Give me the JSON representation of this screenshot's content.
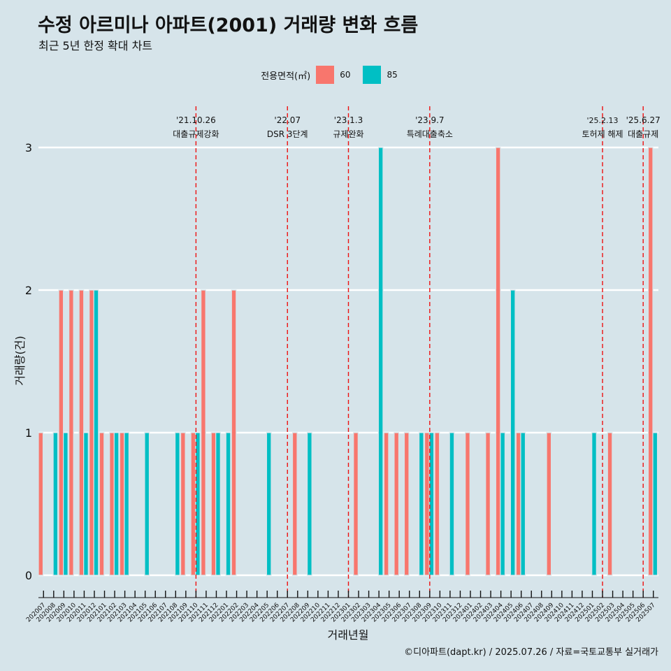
{
  "title": "수정 아르미나 아파트(2001) 거래량 변화 흐름",
  "subtitle": "최근 5년 한정 확대 차트",
  "caption": "©디아파트(dapt.kr) / 2025.07.26 / 자료=국토교통부 실거래가",
  "legend": {
    "title": "전용면적(㎡)",
    "items": [
      {
        "label": "60",
        "color": "#f8766d"
      },
      {
        "label": "85",
        "color": "#00bfc4"
      }
    ]
  },
  "chart_data": {
    "type": "bar",
    "xlabel": "거래년월",
    "ylabel": "거래량(건)",
    "ylim": [
      0,
      3
    ],
    "yticks": [
      0,
      1,
      2,
      3
    ],
    "categories": [
      "202007",
      "202008",
      "202009",
      "202010",
      "202011",
      "202012",
      "202101",
      "202102",
      "202103",
      "202104",
      "202105",
      "202106",
      "202107",
      "202108",
      "202109",
      "202110",
      "202111",
      "202112",
      "202201",
      "202202",
      "202203",
      "202204",
      "202205",
      "202206",
      "202207",
      "202208",
      "202209",
      "202210",
      "202211",
      "202212",
      "202301",
      "202302",
      "202303",
      "202304",
      "202305",
      "202306",
      "202307",
      "202308",
      "202309",
      "202310",
      "202311",
      "202312",
      "202401",
      "202402",
      "202403",
      "202404",
      "202405",
      "202406",
      "202407",
      "202408",
      "202409",
      "202410",
      "202411",
      "202412",
      "202501",
      "202502",
      "202503",
      "202504",
      "202505",
      "202506",
      "202507"
    ],
    "series": [
      {
        "name": "60",
        "color": "#f8766d",
        "values": [
          1,
          0,
          2,
          2,
          2,
          2,
          1,
          1,
          1,
          0,
          0,
          0,
          0,
          0,
          1,
          1,
          2,
          1,
          0,
          2,
          0,
          0,
          0,
          0,
          0,
          1,
          0,
          0,
          0,
          0,
          0,
          1,
          0,
          0,
          1,
          1,
          1,
          0,
          1,
          1,
          0,
          0,
          1,
          0,
          1,
          3,
          0,
          1,
          0,
          0,
          1,
          0,
          0,
          0,
          0,
          0,
          1,
          0,
          0,
          0,
          3
        ]
      },
      {
        "name": "85",
        "color": "#00bfc4",
        "values": [
          0,
          1,
          1,
          0,
          1,
          2,
          0,
          1,
          1,
          0,
          1,
          0,
          0,
          1,
          0,
          1,
          0,
          1,
          1,
          0,
          0,
          0,
          1,
          0,
          0,
          0,
          1,
          0,
          0,
          0,
          0,
          0,
          0,
          3,
          0,
          0,
          0,
          1,
          1,
          0,
          1,
          0,
          0,
          0,
          0,
          1,
          2,
          1,
          0,
          0,
          0,
          0,
          0,
          0,
          1,
          0,
          0,
          0,
          0,
          0,
          1
        ]
      }
    ],
    "events": [
      {
        "month": "202110",
        "date": "'21.10.26",
        "label": "대출규제강화"
      },
      {
        "month": "202207",
        "date": "'22.07",
        "label": "DSR 3단계"
      },
      {
        "month": "202301",
        "date": "'23.1.3",
        "label": "규제완화"
      },
      {
        "month": "202309",
        "date": "'23.9.7",
        "label": "특례대출축소"
      },
      {
        "month": "202502",
        "date": "'25.2.13",
        "label": "토허제 해제"
      },
      {
        "month": "202506",
        "date": "'25.6.27",
        "label": "대출규제"
      }
    ]
  }
}
